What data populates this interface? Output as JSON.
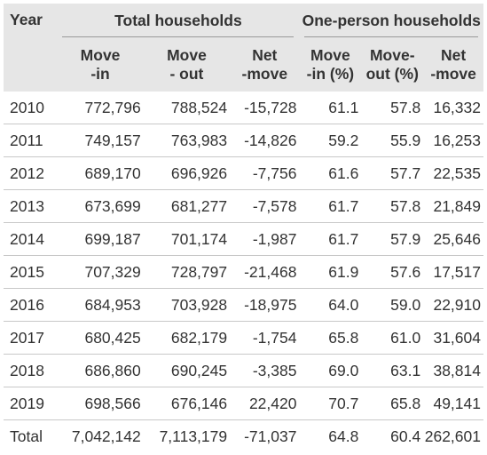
{
  "headers": {
    "year": "Year",
    "group_total": "Total households",
    "group_one": "One-person households",
    "total_move_in": [
      "Move",
      "-in"
    ],
    "total_move_out": [
      "Move",
      "- out"
    ],
    "total_net": [
      "Net",
      "-move"
    ],
    "one_move_in": [
      "Move",
      "-in (%)"
    ],
    "one_move_out": [
      "Move-",
      "out (%)"
    ],
    "one_net": [
      "Net",
      "-move"
    ]
  },
  "rows": [
    {
      "year": "2010",
      "move_in": "772,796",
      "move_out": "788,524",
      "net": "-15,728",
      "op_in": "61.1",
      "op_out": "57.8",
      "op_net": "16,332"
    },
    {
      "year": "2011",
      "move_in": "749,157",
      "move_out": "763,983",
      "net": "-14,826",
      "op_in": "59.2",
      "op_out": "55.9",
      "op_net": "16,253"
    },
    {
      "year": "2012",
      "move_in": "689,170",
      "move_out": "696,926",
      "net": "-7,756",
      "op_in": "61.6",
      "op_out": "57.7",
      "op_net": "22,535"
    },
    {
      "year": "2013",
      "move_in": "673,699",
      "move_out": "681,277",
      "net": "-7,578",
      "op_in": "61.7",
      "op_out": "57.8",
      "op_net": "21,849"
    },
    {
      "year": "2014",
      "move_in": "699,187",
      "move_out": "701,174",
      "net": "-1,987",
      "op_in": "61.7",
      "op_out": "57.9",
      "op_net": "25,646"
    },
    {
      "year": "2015",
      "move_in": "707,329",
      "move_out": "728,797",
      "net": "-21,468",
      "op_in": "61.9",
      "op_out": "57.6",
      "op_net": "17,517"
    },
    {
      "year": "2016",
      "move_in": "684,953",
      "move_out": "703,928",
      "net": "-18,975",
      "op_in": "64.0",
      "op_out": "59.0",
      "op_net": "22,910"
    },
    {
      "year": "2017",
      "move_in": "680,425",
      "move_out": "682,179",
      "net": "-1,754",
      "op_in": "65.8",
      "op_out": "61.0",
      "op_net": "31,604"
    },
    {
      "year": "2018",
      "move_in": "686,860",
      "move_out": "690,245",
      "net": "-3,385",
      "op_in": "69.0",
      "op_out": "63.1",
      "op_net": "38,814"
    },
    {
      "year": "2019",
      "move_in": "698,566",
      "move_out": "676,146",
      "net": "22,420",
      "op_in": "70.7",
      "op_out": "65.8",
      "op_net": "49,141"
    }
  ],
  "total": {
    "year": "Total",
    "move_in": "7,042,142",
    "move_out": "7,113,179",
    "net": "-71,037",
    "op_in": "64.8",
    "op_out": "60.4",
    "op_net": "262,601"
  }
}
